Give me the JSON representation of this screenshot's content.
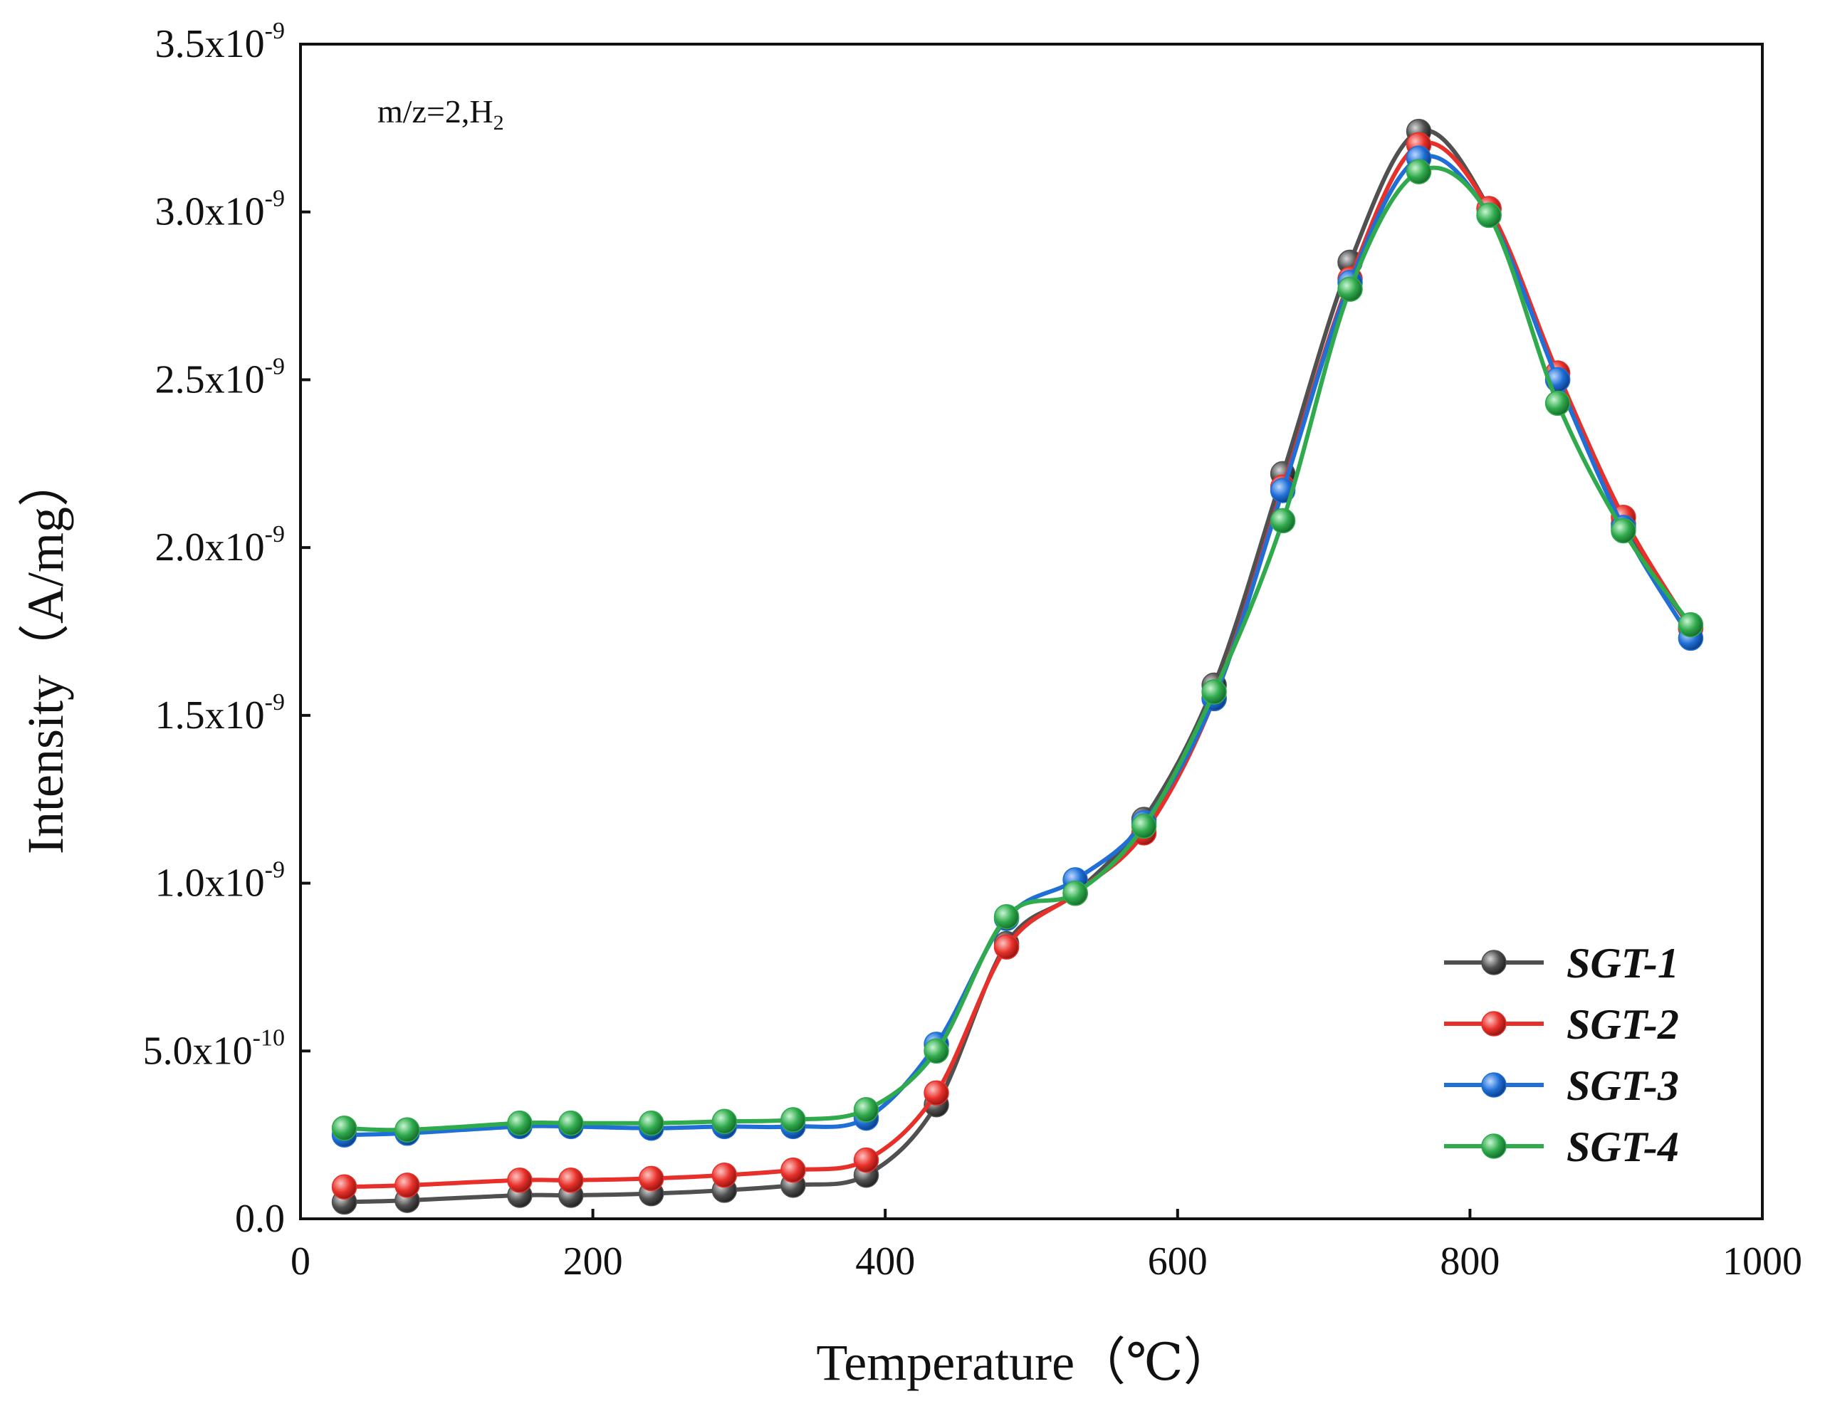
{
  "chart_data": {
    "type": "line",
    "title": "",
    "xlabel": "Temperature（℃）",
    "ylabel": "Intensity（A/mg）",
    "xlim": [
      0,
      1000
    ],
    "ylim": [
      0,
      3.5e-09
    ],
    "grid": false,
    "legend_position": "bottom-right",
    "annotation": {
      "main": "m/z=2,H",
      "subscript": "2"
    },
    "x_ticks": [
      {
        "value": 0,
        "label": "0"
      },
      {
        "value": 200,
        "label": "200"
      },
      {
        "value": 400,
        "label": "400"
      },
      {
        "value": 600,
        "label": "600"
      },
      {
        "value": 800,
        "label": "800"
      },
      {
        "value": 1000,
        "label": "1000"
      }
    ],
    "y_ticks": [
      {
        "value": 0,
        "mantissa": "0.0",
        "exponent": ""
      },
      {
        "value": 5e-10,
        "mantissa": "5.0x10",
        "exponent": "-10"
      },
      {
        "value": 1e-09,
        "mantissa": "1.0x10",
        "exponent": "-9"
      },
      {
        "value": 1.5e-09,
        "mantissa": "1.5x10",
        "exponent": "-9"
      },
      {
        "value": 2e-09,
        "mantissa": "2.0x10",
        "exponent": "-9"
      },
      {
        "value": 2.5e-09,
        "mantissa": "2.5x10",
        "exponent": "-9"
      },
      {
        "value": 3e-09,
        "mantissa": "3.0x10",
        "exponent": "-9"
      },
      {
        "value": 3.5e-09,
        "mantissa": "3.5x10",
        "exponent": "-9"
      }
    ],
    "series": [
      {
        "name": "SGT-1",
        "color": "#505050",
        "x": [
          30,
          73,
          150,
          185,
          240,
          290,
          337,
          387,
          435,
          483,
          530,
          577,
          625,
          672,
          718,
          765,
          813,
          860,
          905,
          951
        ],
        "y": [
          5e-11,
          5.5e-11,
          7e-11,
          7e-11,
          7.5e-11,
          8.5e-11,
          1e-10,
          1.3e-10,
          3.4e-10,
          8.2e-10,
          9.7e-10,
          1.19e-09,
          1.59e-09,
          2.22e-09,
          2.85e-09,
          3.24e-09,
          3.01e-09,
          2.5e-09,
          2.07e-09,
          1.76e-09
        ]
      },
      {
        "name": "SGT-2",
        "color": "#e8302a",
        "x": [
          30,
          73,
          150,
          185,
          240,
          290,
          337,
          387,
          435,
          483,
          530,
          577,
          625,
          672,
          718,
          765,
          813,
          860,
          905,
          951
        ],
        "y": [
          9.5e-11,
          1e-10,
          1.15e-10,
          1.15e-10,
          1.2e-10,
          1.3e-10,
          1.45e-10,
          1.75e-10,
          3.75e-10,
          8.1e-10,
          9.7e-10,
          1.15e-09,
          1.55e-09,
          2.18e-09,
          2.8e-09,
          3.2e-09,
          3.01e-09,
          2.52e-09,
          2.09e-09,
          1.76e-09
        ]
      },
      {
        "name": "SGT-3",
        "color": "#1f6fd6",
        "x": [
          30,
          73,
          150,
          185,
          240,
          290,
          337,
          387,
          435,
          483,
          530,
          577,
          625,
          672,
          718,
          765,
          813,
          860,
          905,
          951
        ],
        "y": [
          2.5e-10,
          2.55e-10,
          2.75e-10,
          2.75e-10,
          2.7e-10,
          2.75e-10,
          2.75e-10,
          3e-10,
          5.2e-10,
          8.95e-10,
          1.01e-09,
          1.18e-09,
          1.55e-09,
          2.17e-09,
          2.79e-09,
          3.16e-09,
          2.99e-09,
          2.5e-09,
          2.06e-09,
          1.73e-09
        ]
      },
      {
        "name": "SGT-4",
        "color": "#2faa4c",
        "x": [
          30,
          73,
          150,
          185,
          240,
          290,
          337,
          387,
          435,
          483,
          530,
          577,
          625,
          672,
          718,
          765,
          813,
          860,
          905,
          951
        ],
        "y": [
          2.7e-10,
          2.65e-10,
          2.85e-10,
          2.85e-10,
          2.85e-10,
          2.9e-10,
          2.95e-10,
          3.25e-10,
          5e-10,
          9e-10,
          9.7e-10,
          1.17e-09,
          1.57e-09,
          2.08e-09,
          2.77e-09,
          3.12e-09,
          2.99e-09,
          2.43e-09,
          2.05e-09,
          1.77e-09
        ]
      }
    ]
  }
}
